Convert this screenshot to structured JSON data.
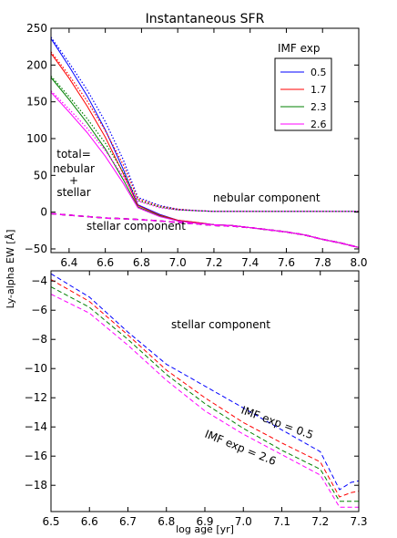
{
  "chart_data": [
    {
      "type": "line",
      "title": "Instantaneous SFR",
      "xlim": [
        6.3,
        8.0
      ],
      "ylim": [
        -55,
        250
      ],
      "xticks": [
        "6.4",
        "6.6",
        "6.8",
        "7.0",
        "7.2",
        "7.4",
        "7.6",
        "7.8",
        "8.0"
      ],
      "yticks": [
        "250",
        "200",
        "150",
        "100",
        "50",
        "0",
        "−50"
      ],
      "legend": {
        "title": "IMF exp",
        "position": "top-right",
        "entries": [
          "0.5",
          "1.7",
          "2.3",
          "2.6"
        ]
      },
      "annotations": {
        "total": [
          "total=",
          "nebular",
          "+",
          "stellar"
        ],
        "nebular": "nebular component",
        "stellar": "stellar component"
      },
      "series": [
        {
          "name": "0.5",
          "color": "#0000ff",
          "total": [
            [
              6.3,
              236
            ],
            [
              6.4,
              198
            ],
            [
              6.5,
              158
            ],
            [
              6.6,
              112
            ],
            [
              6.7,
              58
            ],
            [
              6.78,
              10
            ],
            [
              6.9,
              -3
            ],
            [
              7.0,
              -11
            ],
            [
              7.1,
              -14
            ],
            [
              7.2,
              -17
            ],
            [
              7.3,
              -18
            ],
            [
              7.4,
              -21
            ],
            [
              7.5,
              -24
            ],
            [
              7.6,
              -27
            ],
            [
              7.7,
              -31
            ],
            [
              7.8,
              -37
            ],
            [
              7.9,
              -42
            ],
            [
              8.0,
              -48
            ]
          ],
          "nebular": [
            [
              6.3,
              238
            ],
            [
              6.4,
              203
            ],
            [
              6.5,
              166
            ],
            [
              6.6,
              123
            ],
            [
              6.7,
              71
            ],
            [
              6.78,
              20
            ],
            [
              6.9,
              9
            ],
            [
              7.0,
              4
            ],
            [
              7.1,
              2
            ],
            [
              7.2,
              1
            ],
            [
              7.4,
              1
            ],
            [
              7.6,
              1
            ],
            [
              7.8,
              1
            ],
            [
              8.0,
              1
            ]
          ],
          "stellar": [
            [
              6.3,
              -2
            ],
            [
              6.4,
              -4
            ],
            [
              6.5,
              -6
            ],
            [
              6.6,
              -8
            ],
            [
              6.7,
              -9
            ],
            [
              6.78,
              -10
            ],
            [
              6.9,
              -12
            ],
            [
              7.0,
              -14
            ],
            [
              7.1,
              -16
            ],
            [
              7.2,
              -18
            ],
            [
              7.3,
              -19
            ],
            [
              7.4,
              -21
            ],
            [
              7.5,
              -24
            ],
            [
              7.6,
              -27
            ],
            [
              7.7,
              -31
            ],
            [
              7.8,
              -37
            ],
            [
              7.9,
              -42
            ],
            [
              8.0,
              -48
            ]
          ]
        },
        {
          "name": "1.7",
          "color": "#ff0000",
          "total": [
            [
              6.3,
              216
            ],
            [
              6.4,
              182
            ],
            [
              6.5,
              144
            ],
            [
              6.6,
              102
            ],
            [
              6.7,
              52
            ],
            [
              6.78,
              9
            ],
            [
              6.9,
              -4
            ],
            [
              7.0,
              -11
            ],
            [
              7.1,
              -14
            ],
            [
              7.2,
              -17
            ],
            [
              7.3,
              -18
            ],
            [
              7.4,
              -21
            ],
            [
              7.5,
              -24
            ],
            [
              7.6,
              -27
            ],
            [
              7.7,
              -31
            ],
            [
              7.8,
              -37
            ],
            [
              7.9,
              -42
            ],
            [
              8.0,
              -48
            ]
          ],
          "nebular": [
            [
              6.3,
              218
            ],
            [
              6.4,
              186
            ],
            [
              6.5,
              151
            ],
            [
              6.6,
              111
            ],
            [
              6.7,
              64
            ],
            [
              6.78,
              18
            ],
            [
              6.9,
              8
            ],
            [
              7.0,
              4
            ],
            [
              7.1,
              2
            ],
            [
              7.2,
              1
            ],
            [
              7.4,
              1
            ],
            [
              7.6,
              1
            ],
            [
              7.8,
              1
            ],
            [
              8.0,
              1
            ]
          ],
          "stellar": [
            [
              6.3,
              -2
            ],
            [
              6.4,
              -4
            ],
            [
              6.5,
              -6
            ],
            [
              6.6,
              -8
            ],
            [
              6.7,
              -9
            ],
            [
              6.78,
              -10
            ],
            [
              6.9,
              -12
            ],
            [
              7.0,
              -14
            ],
            [
              7.1,
              -16
            ],
            [
              7.2,
              -18
            ],
            [
              7.3,
              -19
            ],
            [
              7.4,
              -21
            ],
            [
              7.5,
              -24
            ],
            [
              7.6,
              -27
            ],
            [
              7.7,
              -31
            ],
            [
              7.8,
              -37
            ],
            [
              7.9,
              -42
            ],
            [
              8.0,
              -48
            ]
          ]
        },
        {
          "name": "2.3",
          "color": "#008000",
          "total": [
            [
              6.3,
              183
            ],
            [
              6.4,
              153
            ],
            [
              6.5,
              121
            ],
            [
              6.6,
              86
            ],
            [
              6.7,
              44
            ],
            [
              6.78,
              7
            ],
            [
              6.9,
              -5
            ],
            [
              7.0,
              -12
            ],
            [
              7.1,
              -15
            ],
            [
              7.2,
              -17
            ],
            [
              7.3,
              -18
            ],
            [
              7.4,
              -21
            ],
            [
              7.5,
              -24
            ],
            [
              7.6,
              -27
            ],
            [
              7.7,
              -31
            ],
            [
              7.8,
              -37
            ],
            [
              7.9,
              -42
            ],
            [
              8.0,
              -48
            ]
          ],
          "nebular": [
            [
              6.3,
              185
            ],
            [
              6.4,
              157
            ],
            [
              6.5,
              127
            ],
            [
              6.6,
              94
            ],
            [
              6.7,
              54
            ],
            [
              6.78,
              16
            ],
            [
              6.9,
              7
            ],
            [
              7.0,
              3
            ],
            [
              7.1,
              2
            ],
            [
              7.2,
              1
            ],
            [
              7.4,
              1
            ],
            [
              7.6,
              1
            ],
            [
              7.8,
              1
            ],
            [
              8.0,
              1
            ]
          ],
          "stellar": [
            [
              6.3,
              -2
            ],
            [
              6.4,
              -4
            ],
            [
              6.5,
              -6
            ],
            [
              6.6,
              -8
            ],
            [
              6.7,
              -9
            ],
            [
              6.78,
              -10
            ],
            [
              6.9,
              -12
            ],
            [
              7.0,
              -14
            ],
            [
              7.1,
              -16
            ],
            [
              7.2,
              -18
            ],
            [
              7.3,
              -19
            ],
            [
              7.4,
              -21
            ],
            [
              7.5,
              -24
            ],
            [
              7.6,
              -27
            ],
            [
              7.7,
              -31
            ],
            [
              7.8,
              -37
            ],
            [
              7.9,
              -42
            ],
            [
              8.0,
              -48
            ]
          ]
        },
        {
          "name": "2.6",
          "color": "#ff00ff",
          "total": [
            [
              6.3,
              163
            ],
            [
              6.4,
              136
            ],
            [
              6.5,
              108
            ],
            [
              6.6,
              76
            ],
            [
              6.7,
              39
            ],
            [
              6.78,
              6
            ],
            [
              6.9,
              -6
            ],
            [
              7.0,
              -12
            ],
            [
              7.1,
              -15
            ],
            [
              7.2,
              -17
            ],
            [
              7.3,
              -18
            ],
            [
              7.4,
              -21
            ],
            [
              7.5,
              -24
            ],
            [
              7.6,
              -27
            ],
            [
              7.7,
              -31
            ],
            [
              7.8,
              -37
            ],
            [
              7.9,
              -42
            ],
            [
              8.0,
              -48
            ]
          ],
          "nebular": [
            [
              6.3,
              165
            ],
            [
              6.4,
              140
            ],
            [
              6.5,
              114
            ],
            [
              6.6,
              84
            ],
            [
              6.7,
              48
            ],
            [
              6.78,
              15
            ],
            [
              6.9,
              6
            ],
            [
              7.0,
              3
            ],
            [
              7.1,
              2
            ],
            [
              7.2,
              1
            ],
            [
              7.4,
              1
            ],
            [
              7.6,
              1
            ],
            [
              7.8,
              1
            ],
            [
              8.0,
              1
            ]
          ],
          "stellar": [
            [
              6.3,
              -2
            ],
            [
              6.4,
              -4
            ],
            [
              6.5,
              -6
            ],
            [
              6.6,
              -8
            ],
            [
              6.7,
              -9
            ],
            [
              6.78,
              -10
            ],
            [
              6.9,
              -12
            ],
            [
              7.0,
              -14
            ],
            [
              7.1,
              -16
            ],
            [
              7.2,
              -18
            ],
            [
              7.3,
              -19
            ],
            [
              7.4,
              -21
            ],
            [
              7.5,
              -24
            ],
            [
              7.6,
              -27
            ],
            [
              7.7,
              -31
            ],
            [
              7.8,
              -37
            ],
            [
              7.9,
              -42
            ],
            [
              8.0,
              -48
            ]
          ]
        }
      ]
    },
    {
      "type": "line",
      "xlim": [
        6.5,
        7.3
      ],
      "ylim": [
        -19.8,
        -3.3
      ],
      "xticks": [
        "6.5",
        "6.6",
        "6.7",
        "6.8",
        "6.9",
        "7.0",
        "7.1",
        "7.2",
        "7.3"
      ],
      "yticks": [
        "−4",
        "−6",
        "−8",
        "−10",
        "−12",
        "−14",
        "−16",
        "−18"
      ],
      "xlabel": "log age [yr]",
      "annotations": {
        "stellar": "stellar component",
        "imf_top": "IMF exp = 0.5",
        "imf_bottom": "IMF exp = 2.6"
      },
      "series": [
        {
          "name": "0.5",
          "color": "#0000ff",
          "points": [
            [
              6.5,
              -3.5
            ],
            [
              6.6,
              -5.1
            ],
            [
              6.7,
              -7.5
            ],
            [
              6.8,
              -9.7
            ],
            [
              6.9,
              -11.2
            ],
            [
              7.0,
              -12.7
            ],
            [
              7.1,
              -14.2
            ],
            [
              7.2,
              -15.7
            ],
            [
              7.25,
              -18.3
            ],
            [
              7.28,
              -17.8
            ],
            [
              7.3,
              -17.7
            ]
          ]
        },
        {
          "name": "1.7",
          "color": "#ff0000",
          "points": [
            [
              6.5,
              -3.9
            ],
            [
              6.6,
              -5.4
            ],
            [
              6.7,
              -7.7
            ],
            [
              6.8,
              -10.1
            ],
            [
              6.9,
              -12.0
            ],
            [
              7.0,
              -13.7
            ],
            [
              7.1,
              -15.1
            ],
            [
              7.2,
              -16.4
            ],
            [
              7.25,
              -18.8
            ],
            [
              7.28,
              -18.5
            ],
            [
              7.3,
              -18.4
            ]
          ]
        },
        {
          "name": "2.3",
          "color": "#008000",
          "points": [
            [
              6.5,
              -4.4
            ],
            [
              6.6,
              -5.8
            ],
            [
              6.7,
              -8.0
            ],
            [
              6.8,
              -10.4
            ],
            [
              6.9,
              -12.4
            ],
            [
              7.0,
              -14.1
            ],
            [
              7.1,
              -15.6
            ],
            [
              7.2,
              -16.9
            ],
            [
              7.25,
              -19.1
            ],
            [
              7.28,
              -19.1
            ],
            [
              7.3,
              -19.1
            ]
          ]
        },
        {
          "name": "2.6",
          "color": "#ff00ff",
          "points": [
            [
              6.5,
              -4.9
            ],
            [
              6.6,
              -6.2
            ],
            [
              6.7,
              -8.4
            ],
            [
              6.8,
              -10.8
            ],
            [
              6.9,
              -12.9
            ],
            [
              7.0,
              -14.5
            ],
            [
              7.1,
              -15.9
            ],
            [
              7.2,
              -17.3
            ],
            [
              7.25,
              -19.5
            ],
            [
              7.28,
              -19.5
            ],
            [
              7.3,
              -19.5
            ]
          ]
        }
      ]
    }
  ],
  "shared_ylabel": "Ly-alpha EW [Å]"
}
